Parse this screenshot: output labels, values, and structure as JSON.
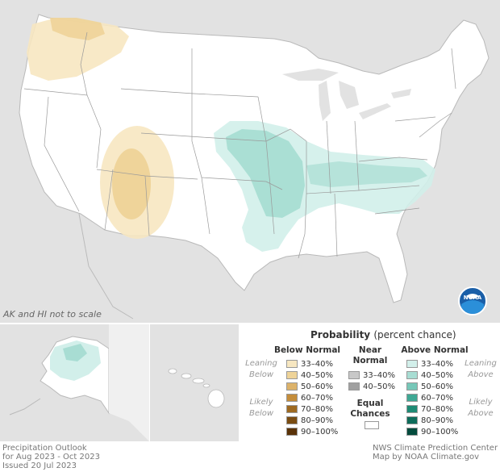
{
  "title_lines": [
    "Precipitation Outlook",
    "for Aug 2023 - Oct 2023",
    "Issued 20 Jul 2023"
  ],
  "credit_lines": [
    "NWS Climate Prediction Center",
    "Map by NOAA Climate.gov"
  ],
  "scale_note": "AK and HI not to scale",
  "logo_text": "NOAA",
  "legend": {
    "title": "Probability",
    "title_sub": "(percent chance)",
    "below_normal": {
      "heading": "Below Normal",
      "items": [
        {
          "label": "33–40%",
          "color": "#f7e7c1"
        },
        {
          "label": "40–50%",
          "color": "#eed398"
        },
        {
          "label": "50–60%",
          "color": "#dcb26a"
        },
        {
          "label": "60–70%",
          "color": "#c48d3b"
        },
        {
          "label": "70–80%",
          "color": "#9e6a21"
        },
        {
          "label": "80–90%",
          "color": "#7a4c12"
        },
        {
          "label": "90–100%",
          "color": "#5a3208"
        }
      ],
      "leaning_label": [
        "Leaning",
        "Below"
      ],
      "likely_label": [
        "Likely",
        "Below"
      ]
    },
    "near_normal": {
      "heading": [
        "Near",
        "Normal"
      ],
      "items": [
        {
          "label": "33–40%",
          "color": "#c8c8c8"
        },
        {
          "label": "40–50%",
          "color": "#a0a0a0"
        }
      ]
    },
    "equal_chances": {
      "label": [
        "Equal",
        "Chances"
      ],
      "color": "#ffffff"
    },
    "above_normal": {
      "heading": "Above Normal",
      "items": [
        {
          "label": "33–40%",
          "color": "#d2efea"
        },
        {
          "label": "40–50%",
          "color": "#a8ddd3"
        },
        {
          "label": "50–60%",
          "color": "#76c7b8"
        },
        {
          "label": "60–70%",
          "color": "#3fa894"
        },
        {
          "label": "70–80%",
          "color": "#1e8a74"
        },
        {
          "label": "80–90%",
          "color": "#0e6c5a"
        },
        {
          "label": "90–100%",
          "color": "#034b3d"
        }
      ],
      "leaning_label": [
        "Leaning",
        "Above"
      ],
      "likely_label": [
        "Likely",
        "Above"
      ]
    }
  }
}
